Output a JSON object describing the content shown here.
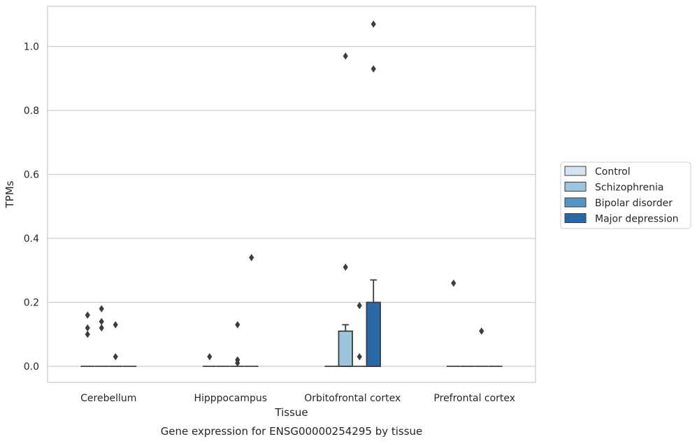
{
  "chart_data": {
    "type": "boxplot",
    "title": "",
    "caption": "Gene expression for ENSG00000254295 by tissue",
    "xlabel": "Tissue",
    "ylabel": "TPMs",
    "ylim": [
      -0.05,
      1.13
    ],
    "yticks": [
      0.0,
      0.2,
      0.4,
      0.6,
      0.8,
      1.0
    ],
    "ytick_labels": [
      "0.0",
      "0.2",
      "0.4",
      "0.6",
      "0.8",
      "1.0"
    ],
    "grid": "horizontal",
    "legend_position": "right",
    "categories": [
      "Cerebellum",
      "Hipppocampus",
      "Orbitofrontal cortex",
      "Prefrontal cortex"
    ],
    "series": [
      {
        "name": "Control",
        "color": "#d5e3f1",
        "boxes": [
          {
            "q1": 0,
            "median": 0,
            "q3": 0,
            "whisker_low": 0,
            "whisker_high": 0,
            "outliers": [
              0.16,
              0.12,
              0.1
            ]
          },
          {
            "q1": 0,
            "median": 0,
            "q3": 0,
            "whisker_low": 0,
            "whisker_high": 0,
            "outliers": [
              0.03
            ]
          },
          {
            "q1": 0,
            "median": 0,
            "q3": 0,
            "whisker_low": 0,
            "whisker_high": 0,
            "outliers": []
          },
          {
            "q1": 0,
            "median": 0,
            "q3": 0,
            "whisker_low": 0,
            "whisker_high": 0,
            "outliers": [
              0.26
            ]
          }
        ]
      },
      {
        "name": "Schizophrenia",
        "color": "#9ac5dc",
        "boxes": [
          {
            "q1": 0,
            "median": 0,
            "q3": 0,
            "whisker_low": 0,
            "whisker_high": 0,
            "outliers": [
              0.18,
              0.14,
              0.12
            ]
          },
          {
            "q1": 0,
            "median": 0,
            "q3": 0,
            "whisker_low": 0,
            "whisker_high": 0,
            "outliers": []
          },
          {
            "q1": 0,
            "median": 0,
            "q3": 0.11,
            "whisker_low": 0,
            "whisker_high": 0.13,
            "outliers": [
              0.97,
              0.31
            ]
          },
          {
            "q1": 0,
            "median": 0,
            "q3": 0,
            "whisker_low": 0,
            "whisker_high": 0,
            "outliers": []
          }
        ]
      },
      {
        "name": "Bipolar disorder",
        "color": "#5394c2",
        "boxes": [
          {
            "q1": 0,
            "median": 0,
            "q3": 0,
            "whisker_low": 0,
            "whisker_high": 0,
            "outliers": [
              0.13,
              0.03
            ]
          },
          {
            "q1": 0,
            "median": 0,
            "q3": 0,
            "whisker_low": 0,
            "whisker_high": 0,
            "outliers": [
              0.13,
              0.02,
              0.01
            ]
          },
          {
            "q1": 0,
            "median": 0,
            "q3": 0,
            "whisker_low": 0,
            "whisker_high": 0,
            "outliers": [
              0.19,
              0.03
            ]
          },
          {
            "q1": 0,
            "median": 0,
            "q3": 0,
            "whisker_low": 0,
            "whisker_high": 0,
            "outliers": [
              0.11
            ]
          }
        ]
      },
      {
        "name": "Major depression",
        "color": "#2a68a8",
        "boxes": [
          {
            "q1": 0,
            "median": 0,
            "q3": 0,
            "whisker_low": 0,
            "whisker_high": 0,
            "outliers": []
          },
          {
            "q1": 0,
            "median": 0,
            "q3": 0,
            "whisker_low": 0,
            "whisker_high": 0,
            "outliers": [
              0.34
            ]
          },
          {
            "q1": 0,
            "median": 0,
            "q3": 0.2,
            "whisker_low": 0,
            "whisker_high": 0.27,
            "outliers": [
              1.07,
              0.93
            ]
          },
          {
            "q1": 0,
            "median": 0,
            "q3": 0,
            "whisker_low": 0,
            "whisker_high": 0,
            "outliers": []
          }
        ]
      }
    ]
  }
}
